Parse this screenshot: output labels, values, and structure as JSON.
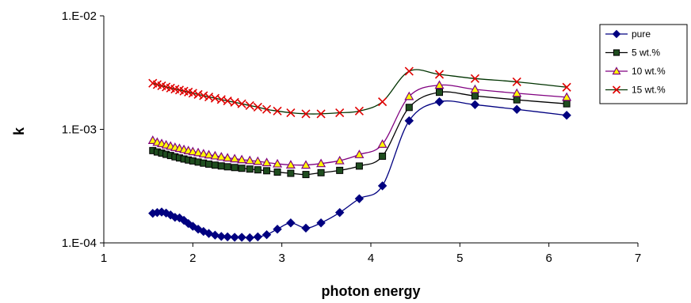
{
  "chart_data": {
    "type": "line",
    "xlabel": "photon energy",
    "ylabel": "k",
    "xlim": [
      1,
      7
    ],
    "ylim": [
      0.0001,
      0.01
    ],
    "y_scale": "log",
    "x_ticks": [
      1,
      2,
      3,
      4,
      5,
      6,
      7
    ],
    "x_tick_labels": [
      "1",
      "2",
      "3",
      "4",
      "5",
      "6",
      "7"
    ],
    "y_ticks": [
      0.0001,
      0.001,
      0.01
    ],
    "y_tick_labels": [
      "1.E-04",
      "1.E-03",
      "1.E-02"
    ],
    "grid": false,
    "legend_position": "top-right",
    "series": [
      {
        "name": "pure",
        "color": "#000080",
        "marker": "diamond",
        "x": [
          1.55,
          1.6,
          1.65,
          1.7,
          1.75,
          1.8,
          1.85,
          1.9,
          1.95,
          2.0,
          2.06,
          2.12,
          2.18,
          2.25,
          2.32,
          2.39,
          2.47,
          2.55,
          2.64,
          2.73,
          2.83,
          2.95,
          3.1,
          3.27,
          3.44,
          3.65,
          3.87,
          4.13,
          4.43,
          4.77,
          5.17,
          5.64,
          6.2
        ],
        "y": [
          0.000182,
          0.000185,
          0.000187,
          0.000183,
          0.000176,
          0.000168,
          0.000166,
          0.000158,
          0.000148,
          0.00014,
          0.000132,
          0.000126,
          0.000121,
          0.000117,
          0.000114,
          0.000113,
          0.000112,
          0.000112,
          0.000111,
          0.000113,
          0.000118,
          0.000132,
          0.00015,
          0.000135,
          0.00015,
          0.000185,
          0.000245,
          0.000318,
          0.00119,
          0.00175,
          0.00165,
          0.0015,
          0.00133
        ]
      },
      {
        "name": "5 wt.%",
        "color": "#000000",
        "marker": "square",
        "x": [
          1.55,
          1.6,
          1.65,
          1.7,
          1.75,
          1.8,
          1.85,
          1.9,
          1.95,
          2.0,
          2.06,
          2.12,
          2.18,
          2.25,
          2.32,
          2.39,
          2.47,
          2.55,
          2.64,
          2.73,
          2.83,
          2.95,
          3.1,
          3.27,
          3.44,
          3.65,
          3.87,
          4.13,
          4.43,
          4.77,
          5.17,
          5.64,
          6.2
        ],
        "y": [
          0.00065,
          0.000632,
          0.000618,
          0.000602,
          0.000588,
          0.000573,
          0.00056,
          0.000548,
          0.000537,
          0.000527,
          0.000515,
          0.000504,
          0.000494,
          0.000484,
          0.000476,
          0.000468,
          0.000461,
          0.000454,
          0.000447,
          0.00044,
          0.000432,
          0.00042,
          0.00041,
          0.0004,
          0.000415,
          0.000435,
          0.000475,
          0.00058,
          0.00156,
          0.00212,
          0.00197,
          0.00182,
          0.00168
        ]
      },
      {
        "name": "10 wt.%",
        "color": "#800080",
        "marker": "triangle",
        "x": [
          1.55,
          1.6,
          1.65,
          1.7,
          1.75,
          1.8,
          1.85,
          1.9,
          1.95,
          2.0,
          2.06,
          2.12,
          2.18,
          2.25,
          2.32,
          2.39,
          2.47,
          2.55,
          2.64,
          2.73,
          2.83,
          2.95,
          3.1,
          3.27,
          3.44,
          3.65,
          3.87,
          4.13,
          4.43,
          4.77,
          5.17,
          5.64,
          6.2
        ],
        "y": [
          0.0008,
          0.00077,
          0.00075,
          0.00073,
          0.000712,
          0.000694,
          0.00068,
          0.000665,
          0.00065,
          0.000637,
          0.000624,
          0.00061,
          0.000597,
          0.000585,
          0.000573,
          0.000561,
          0.000551,
          0.000541,
          0.000532,
          0.000523,
          0.00051,
          0.000497,
          0.000487,
          0.000485,
          0.0005,
          0.00053,
          0.0006,
          0.00074,
          0.00195,
          0.00245,
          0.00225,
          0.00208,
          0.00192
        ]
      },
      {
        "name": "15 wt.%",
        "color": "#cc0000",
        "marker": "x",
        "x": [
          1.55,
          1.6,
          1.65,
          1.7,
          1.75,
          1.8,
          1.85,
          1.9,
          1.95,
          2.0,
          2.06,
          2.12,
          2.18,
          2.25,
          2.32,
          2.39,
          2.47,
          2.55,
          2.64,
          2.73,
          2.83,
          2.95,
          3.1,
          3.27,
          3.44,
          3.65,
          3.87,
          4.13,
          4.43,
          4.77,
          5.17,
          5.64,
          6.2
        ],
        "y": [
          0.00255,
          0.00248,
          0.00242,
          0.00236,
          0.00231,
          0.00226,
          0.00222,
          0.00217,
          0.00213,
          0.00208,
          0.00203,
          0.00198,
          0.00193,
          0.00188,
          0.00183,
          0.00178,
          0.00173,
          0.00168,
          0.00162,
          0.00157,
          0.0015,
          0.00145,
          0.0014,
          0.00137,
          0.00137,
          0.0014,
          0.00145,
          0.00175,
          0.00325,
          0.00305,
          0.0028,
          0.00262,
          0.00235
        ]
      }
    ]
  }
}
